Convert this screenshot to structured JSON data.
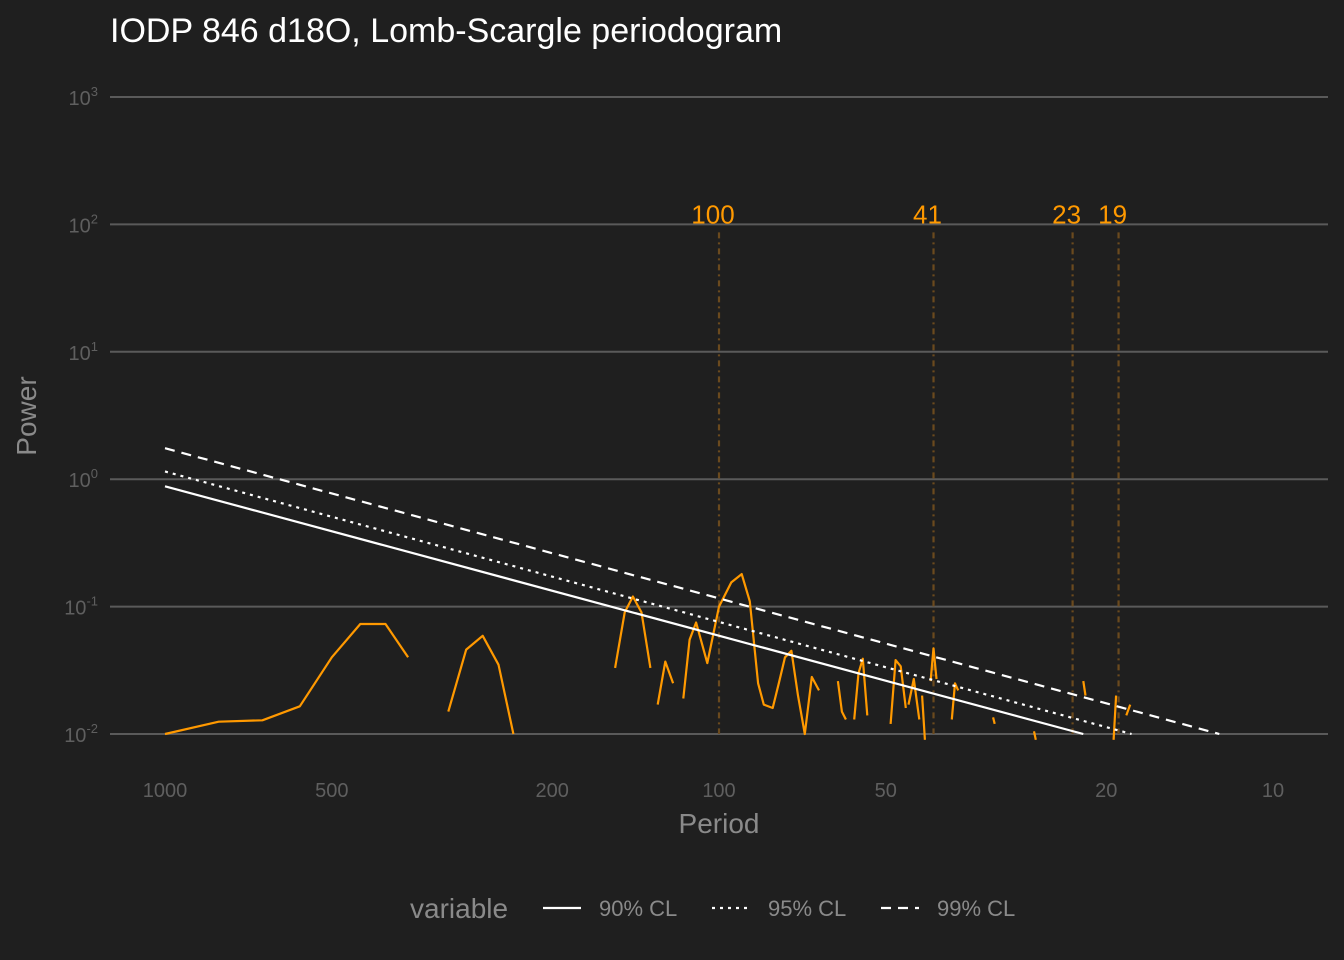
{
  "chart_data": {
    "type": "line",
    "title": "IODP 846 d18O, Lomb-Scargle periodogram",
    "xlabel": "Period",
    "ylabel": "Power",
    "x_scale": "log-reversed",
    "y_scale": "log",
    "xlim": [
      1000,
      10
    ],
    "ylim": [
      0.01,
      1000
    ],
    "x_ticks": [
      1000,
      500,
      200,
      100,
      50,
      20,
      10
    ],
    "x_tick_labels": [
      "1000",
      "500",
      "200",
      "100",
      "50",
      "20",
      "10"
    ],
    "y_ticks": [
      {
        "value": 0.01,
        "base": "10",
        "exp": "-2"
      },
      {
        "value": 0.1,
        "base": "10",
        "exp": "-1"
      },
      {
        "value": 1,
        "base": "10",
        "exp": "0"
      },
      {
        "value": 10,
        "base": "10",
        "exp": "1"
      },
      {
        "value": 100,
        "base": "10",
        "exp": "2"
      },
      {
        "value": 1000,
        "base": "10",
        "exp": "3"
      }
    ],
    "grid": true,
    "legend_position": "bottom",
    "legend_title": "variable",
    "colors": {
      "background": "#1f1f1f",
      "grid": "#5a5a5a",
      "spectrum": "#ff9900",
      "confidence": "#ffffff",
      "peak_line": "#6b4a1e"
    },
    "peaks": [
      {
        "period": 100,
        "label": "100"
      },
      {
        "period": 41,
        "label": "41"
      },
      {
        "period": 23,
        "label": "23"
      },
      {
        "period": 19,
        "label": "19"
      }
    ],
    "confidence_series": [
      {
        "name": "90% CL",
        "dash": "solid",
        "x": [
          1000,
          22
        ],
        "y": [
          0.88,
          0.01
        ]
      },
      {
        "name": "95% CL",
        "dash": "dotted",
        "x": [
          1000,
          18
        ],
        "y": [
          1.15,
          0.01
        ]
      },
      {
        "name": "99% CL",
        "dash": "dashed",
        "x": [
          1000,
          12.5
        ],
        "y": [
          1.75,
          0.01
        ]
      }
    ],
    "spectrum_segments": [
      {
        "x": [
          1000,
          800,
          667,
          571,
          500,
          444,
          400,
          364
        ],
        "y": [
          0.01,
          0.0125,
          0.0128,
          0.0165,
          0.04,
          0.073,
          0.073,
          0.04
        ]
      },
      {
        "x": [
          308,
          286,
          267,
          250,
          235
        ],
        "y": [
          0.015,
          0.046,
          0.059,
          0.035,
          0.01
        ]
      },
      {
        "x": [
          154,
          148,
          143,
          138,
          133
        ],
        "y": [
          0.033,
          0.09,
          0.12,
          0.09,
          0.033
        ]
      },
      {
        "x": [
          129,
          125,
          121
        ],
        "y": [
          0.017,
          0.037,
          0.025
        ]
      },
      {
        "x": [
          116,
          113,
          110,
          105,
          100,
          95,
          91,
          88,
          85,
          83,
          80,
          78,
          76,
          74,
          72,
          70,
          68,
          66
        ],
        "y": [
          0.019,
          0.055,
          0.075,
          0.036,
          0.1,
          0.155,
          0.18,
          0.11,
          0.025,
          0.017,
          0.016,
          0.025,
          0.04,
          0.045,
          0.02,
          0.01,
          0.028,
          0.022
        ]
      },
      {
        "x": [
          61,
          60,
          59
        ],
        "y": [
          0.026,
          0.015,
          0.013
        ]
      },
      {
        "x": [
          57,
          56,
          55,
          54
        ],
        "y": [
          0.013,
          0.03,
          0.039,
          0.014
        ]
      },
      {
        "x": [
          49,
          48,
          47,
          46
        ],
        "y": [
          0.012,
          0.038,
          0.034,
          0.016
        ]
      },
      {
        "x": [
          45.5,
          44.5,
          43.5
        ],
        "y": [
          0.017,
          0.027,
          0.013
        ]
      },
      {
        "x": [
          43,
          42.5
        ],
        "y": [
          0.02,
          0.009
        ]
      },
      {
        "x": [
          41.5,
          41,
          40.5
        ],
        "y": [
          0.026,
          0.047,
          0.027
        ]
      },
      {
        "x": [
          38,
          37.5,
          37
        ],
        "y": [
          0.013,
          0.025,
          0.022
        ]
      },
      {
        "x": [
          32,
          31.8
        ],
        "y": [
          0.0135,
          0.012
        ]
      },
      {
        "x": [
          27,
          26.8
        ],
        "y": [
          0.0105,
          0.009
        ]
      },
      {
        "x": [
          22,
          21.8
        ],
        "y": [
          0.026,
          0.02
        ]
      },
      {
        "x": [
          19.4,
          19.2
        ],
        "y": [
          0.009,
          0.02
        ]
      },
      {
        "x": [
          18.4,
          18.1
        ],
        "y": [
          0.014,
          0.017
        ]
      }
    ]
  }
}
